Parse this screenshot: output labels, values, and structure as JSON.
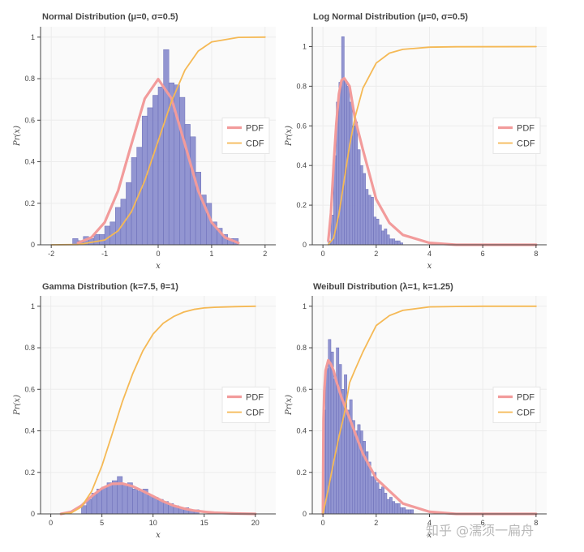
{
  "chart_data": [
    {
      "type": "histogram+line",
      "title": "Normal Distribution (μ=0, σ=0.5)",
      "xlabel": "x",
      "ylabel": "Pr(x)",
      "xlim": [
        -2.2,
        2.2
      ],
      "ylim": [
        0,
        1.05
      ],
      "xticks": [
        -2,
        -1,
        0,
        1,
        2
      ],
      "xtick_labels": [
        "-2",
        "-1",
        "0",
        "1",
        "2"
      ],
      "yticks": [
        0,
        0.2,
        0.4,
        0.6,
        0.8,
        1
      ],
      "ytick_labels": [
        "0",
        "0.2",
        "0.4",
        "0.6",
        "0.8",
        "1"
      ],
      "histogram": {
        "name": "Histogram",
        "edges": [
          -1.6,
          -1.5,
          -1.4,
          -1.3,
          -1.2,
          -1.1,
          -1.0,
          -0.9,
          -0.8,
          -0.7,
          -0.6,
          -0.5,
          -0.4,
          -0.3,
          -0.2,
          -0.1,
          0.0,
          0.1,
          0.2,
          0.3,
          0.4,
          0.5,
          0.6,
          0.7,
          0.8,
          0.9,
          1.0,
          1.1,
          1.2,
          1.3,
          1.4,
          1.5
        ],
        "counts": [
          0.03,
          0.02,
          0.04,
          0.03,
          0.05,
          0.05,
          0.09,
          0.11,
          0.18,
          0.22,
          0.3,
          0.42,
          0.47,
          0.62,
          0.66,
          0.72,
          0.76,
          0.94,
          0.78,
          0.77,
          0.71,
          0.58,
          0.52,
          0.35,
          0.24,
          0.2,
          0.11,
          0.08,
          0.05,
          0.03,
          0.03
        ]
      },
      "series": [
        {
          "name": "PDF",
          "x": [
            -1.5,
            -1.25,
            -1.0,
            -0.75,
            -0.5,
            -0.25,
            0.0,
            0.25,
            0.5,
            0.75,
            1.0,
            1.25,
            1.5
          ],
          "values": [
            0.009,
            0.035,
            0.108,
            0.26,
            0.484,
            0.704,
            0.798,
            0.704,
            0.484,
            0.26,
            0.108,
            0.035,
            0.009
          ]
        },
        {
          "name": "CDF",
          "x": [
            -2.0,
            -1.5,
            -1.0,
            -0.75,
            -0.5,
            -0.25,
            0.0,
            0.25,
            0.5,
            0.75,
            1.0,
            1.5,
            2.0
          ],
          "values": [
            0.0,
            0.001,
            0.023,
            0.067,
            0.159,
            0.309,
            0.5,
            0.691,
            0.841,
            0.933,
            0.977,
            0.999,
            1.0
          ]
        }
      ],
      "legend": {
        "position": "right",
        "entries": [
          "PDF",
          "CDF"
        ]
      }
    },
    {
      "type": "histogram+line",
      "title": "Log Normal Distribution (μ=0, σ=0.5)",
      "xlabel": "x",
      "ylabel": "Pr(x)",
      "xlim": [
        -0.4,
        8.4
      ],
      "ylim": [
        0,
        1.1
      ],
      "xticks": [
        0,
        2,
        4,
        6,
        8
      ],
      "xtick_labels": [
        "0",
        "2",
        "4",
        "6",
        "8"
      ],
      "yticks": [
        0,
        0.2,
        0.4,
        0.6,
        0.8,
        1
      ],
      "ytick_labels": [
        "0",
        "0.2",
        "0.4",
        "0.6",
        "0.8",
        "1"
      ],
      "histogram": {
        "name": "Histogram",
        "edges": [
          0.2,
          0.3,
          0.4,
          0.5,
          0.6,
          0.7,
          0.8,
          0.9,
          1.0,
          1.1,
          1.2,
          1.3,
          1.4,
          1.5,
          1.6,
          1.7,
          1.8,
          1.9,
          2.0,
          2.1,
          2.2,
          2.3,
          2.4,
          2.5,
          2.6,
          2.7,
          2.8,
          2.9,
          3.0
        ],
        "counts": [
          0.02,
          0.15,
          0.45,
          0.72,
          0.82,
          1.05,
          0.83,
          0.8,
          0.72,
          0.6,
          0.62,
          0.48,
          0.4,
          0.36,
          0.28,
          0.25,
          0.24,
          0.14,
          0.13,
          0.1,
          0.07,
          0.08,
          0.05,
          0.03,
          0.03,
          0.02,
          0.02,
          0.01
        ]
      },
      "series": [
        {
          "name": "PDF",
          "x": [
            0.2,
            0.3,
            0.4,
            0.5,
            0.6,
            0.7,
            0.8,
            1.0,
            1.2,
            1.5,
            2.0,
            2.5,
            3.0,
            4.0,
            5.0,
            6.0,
            8.0
          ],
          "values": [
            0.02,
            0.16,
            0.4,
            0.61,
            0.76,
            0.83,
            0.84,
            0.8,
            0.64,
            0.48,
            0.23,
            0.11,
            0.05,
            0.01,
            0.0,
            0.0,
            0.0
          ]
        },
        {
          "name": "CDF",
          "x": [
            0.2,
            0.4,
            0.6,
            0.8,
            1.0,
            1.2,
            1.5,
            2.0,
            2.5,
            3.0,
            4.0,
            5.0,
            8.0
          ],
          "values": [
            0.001,
            0.034,
            0.153,
            0.328,
            0.5,
            0.64,
            0.79,
            0.917,
            0.967,
            0.986,
            0.997,
            0.999,
            1.0
          ]
        }
      ],
      "legend": {
        "position": "right",
        "entries": [
          "PDF",
          "CDF"
        ]
      }
    },
    {
      "type": "histogram+line",
      "title": "Gamma Distribution (k=7.5, θ=1)",
      "xlabel": "x",
      "ylabel": "Pr(x)",
      "xlim": [
        -1,
        22
      ],
      "ylim": [
        0,
        1.05
      ],
      "xticks": [
        0,
        5,
        10,
        15,
        20
      ],
      "xtick_labels": [
        "0",
        "5",
        "10",
        "15",
        "20"
      ],
      "yticks": [
        0,
        0.2,
        0.4,
        0.6,
        0.8,
        1
      ],
      "ytick_labels": [
        "0",
        "0.2",
        "0.4",
        "0.6",
        "0.8",
        "1"
      ],
      "histogram": {
        "name": "Histogram",
        "edges": [
          3.0,
          3.5,
          4.0,
          4.5,
          5.0,
          5.5,
          6.0,
          6.5,
          7.0,
          7.5,
          8.0,
          8.5,
          9.0,
          9.5,
          10.0,
          10.5,
          11.0,
          11.5,
          12.0,
          12.5,
          13.0,
          13.5,
          14.0,
          14.5
        ],
        "counts": [
          0.04,
          0.07,
          0.1,
          0.12,
          0.13,
          0.15,
          0.16,
          0.18,
          0.14,
          0.15,
          0.12,
          0.11,
          0.12,
          0.09,
          0.08,
          0.07,
          0.06,
          0.05,
          0.04,
          0.03,
          0.03,
          0.02,
          0.02
        ]
      },
      "series": [
        {
          "name": "PDF",
          "x": [
            1,
            2,
            3,
            4,
            5,
            6,
            7,
            8,
            9,
            10,
            11,
            12,
            13,
            14,
            15,
            16,
            18,
            20
          ],
          "values": [
            0.0,
            0.01,
            0.04,
            0.085,
            0.123,
            0.145,
            0.146,
            0.133,
            0.11,
            0.085,
            0.06,
            0.04,
            0.026,
            0.016,
            0.01,
            0.006,
            0.002,
            0.0
          ]
        },
        {
          "name": "CDF",
          "x": [
            1,
            2,
            3,
            4,
            5,
            6,
            7,
            8,
            9,
            10,
            11,
            12,
            13,
            14,
            15,
            16,
            18,
            20
          ],
          "values": [
            0.0,
            0.005,
            0.034,
            0.109,
            0.232,
            0.385,
            0.541,
            0.674,
            0.785,
            0.866,
            0.918,
            0.95,
            0.972,
            0.985,
            0.992,
            0.995,
            0.998,
            1.0
          ]
        }
      ],
      "legend": {
        "position": "right",
        "entries": [
          "PDF",
          "CDF"
        ]
      }
    },
    {
      "type": "histogram+line",
      "title": "Weibull Distribution (λ=1, k=1.25)",
      "xlabel": "x",
      "ylabel": "Pr(x)",
      "xlim": [
        -0.4,
        8.4
      ],
      "ylim": [
        0,
        1.05
      ],
      "xticks": [
        0,
        2,
        4,
        6,
        8
      ],
      "xtick_labels": [
        "0",
        "2",
        "4",
        "6",
        "8"
      ],
      "yticks": [
        0,
        0.2,
        0.4,
        0.6,
        0.8,
        1
      ],
      "ytick_labels": [
        "0",
        "0.2",
        "0.4",
        "0.6",
        "0.8",
        "1"
      ],
      "histogram": {
        "name": "Histogram",
        "edges": [
          0.0,
          0.1,
          0.2,
          0.3,
          0.4,
          0.5,
          0.6,
          0.7,
          0.8,
          0.9,
          1.0,
          1.1,
          1.2,
          1.3,
          1.4,
          1.5,
          1.6,
          1.7,
          1.8,
          1.9,
          2.0,
          2.1,
          2.2,
          2.3,
          2.4,
          2.5,
          2.6,
          2.7,
          2.8,
          2.9,
          3.0,
          3.1,
          3.2,
          3.3,
          3.4
        ],
        "counts": [
          0.5,
          0.7,
          0.84,
          0.78,
          0.65,
          0.8,
          0.72,
          0.6,
          0.67,
          0.5,
          0.55,
          0.45,
          0.4,
          0.43,
          0.4,
          0.35,
          0.3,
          0.25,
          0.18,
          0.2,
          0.15,
          0.12,
          0.13,
          0.1,
          0.07,
          0.08,
          0.06,
          0.05,
          0.05,
          0.03,
          0.03,
          0.02,
          0.02,
          0.02
        ]
      },
      "series": [
        {
          "name": "PDF",
          "x": [
            0.0,
            0.02,
            0.05,
            0.1,
            0.2,
            0.3,
            0.4,
            0.5,
            0.7,
            1.0,
            1.5,
            2.0,
            3.0,
            4.0,
            5.0,
            6.0,
            8.0
          ],
          "values": [
            0.0,
            0.45,
            0.59,
            0.69,
            0.74,
            0.72,
            0.69,
            0.64,
            0.56,
            0.46,
            0.29,
            0.17,
            0.05,
            0.01,
            0.0,
            0.0,
            0.0
          ]
        },
        {
          "name": "CDF",
          "x": [
            0.0,
            0.2,
            0.4,
            0.6,
            0.8,
            1.0,
            1.2,
            1.5,
            2.0,
            2.5,
            3.0,
            4.0,
            5.0,
            6.0,
            8.0
          ],
          "values": [
            0.0,
            0.118,
            0.25,
            0.37,
            0.48,
            0.632,
            0.692,
            0.78,
            0.907,
            0.955,
            0.98,
            0.997,
            0.999,
            1.0,
            1.0
          ]
        }
      ],
      "legend": {
        "position": "right",
        "entries": [
          "PDF",
          "CDF"
        ]
      }
    }
  ],
  "style": {
    "hist_fill": "#8c8fcf",
    "hist_stroke": "#6a6db8",
    "pdf_color": "#f29b9b",
    "cdf_color": "#f5b955",
    "background": "#ffffff",
    "plot_background": "#fafafa",
    "grid_color": "#ececec",
    "axis_color": "#444444"
  },
  "watermark": {
    "text": "知乎 @濡须一扁舟"
  }
}
